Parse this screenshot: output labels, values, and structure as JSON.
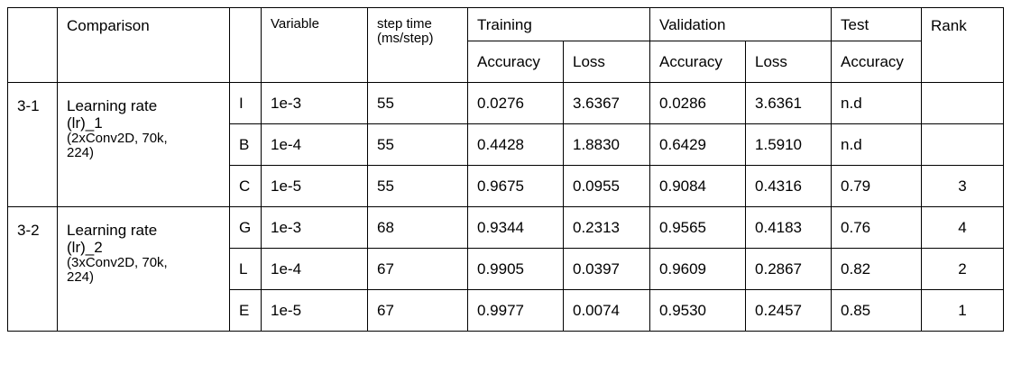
{
  "headers": {
    "comparison": "Comparison",
    "variable": "Variable",
    "step_time": "step time\n(ms/step)",
    "training": "Training",
    "validation": "Validation",
    "test": "Test",
    "rank": "Rank",
    "accuracy": "Accuracy",
    "loss": "Loss"
  },
  "groups": [
    {
      "id": "3-1",
      "comparison_title": "Learning rate\n(lr)_1",
      "comparison_detail": "(2xConv2D, 70k,\n224)",
      "rows": [
        {
          "code": "I",
          "variable": "1e-3",
          "step_time": "55",
          "train_acc": "0.0276",
          "train_loss": "3.6367",
          "val_acc": "0.0286",
          "val_loss": "3.6361",
          "test_acc": "n.d",
          "rank": ""
        },
        {
          "code": "B",
          "variable": "1e-4",
          "step_time": "55",
          "train_acc": "0.4428",
          "train_loss": "1.8830",
          "val_acc": "0.6429",
          "val_loss": "1.5910",
          "test_acc": "n.d",
          "rank": ""
        },
        {
          "code": "C",
          "variable": "1e-5",
          "step_time": "55",
          "train_acc": "0.9675",
          "train_loss": "0.0955",
          "val_acc": "0.9084",
          "val_loss": "0.4316",
          "test_acc": "0.79",
          "rank": "3"
        }
      ]
    },
    {
      "id": "3-2",
      "comparison_title": "Learning rate\n(lr)_2",
      "comparison_detail": "(3xConv2D, 70k,\n224)",
      "rows": [
        {
          "code": "G",
          "variable": "1e-3",
          "step_time": "68",
          "train_acc": "0.9344",
          "train_loss": "0.2313",
          "val_acc": "0.9565",
          "val_loss": "0.4183",
          "test_acc": "0.76",
          "rank": "4"
        },
        {
          "code": "L",
          "variable": "1e-4",
          "step_time": "67",
          "train_acc": "0.9905",
          "train_loss": "0.0397",
          "val_acc": "0.9609",
          "val_loss": "0.2867",
          "test_acc": "0.82",
          "rank": "2"
        },
        {
          "code": "E",
          "variable": "1e-5",
          "step_time": "67",
          "train_acc": "0.9977",
          "train_loss": "0.0074",
          "val_acc": "0.9530",
          "val_loss": "0.2457",
          "test_acc": "0.85",
          "rank": "1"
        }
      ]
    }
  ]
}
